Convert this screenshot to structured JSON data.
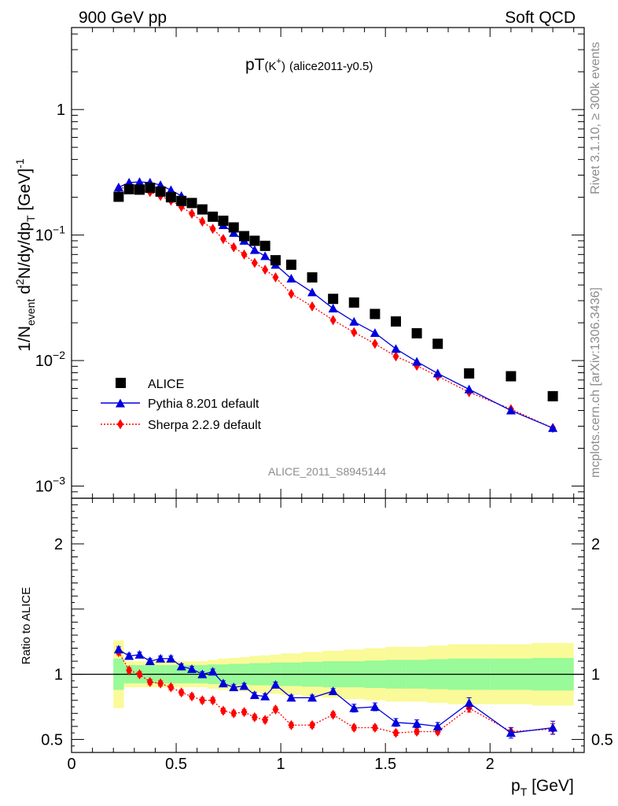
{
  "header": {
    "left": "900 GeV pp",
    "right": "Soft QCD"
  },
  "side_labels": {
    "rivet": "Rivet 3.1.10, ≥ 300k events",
    "mcplots": "mcplots.cern.ch [arXiv:1306.3436]"
  },
  "colors": {
    "data": "#000000",
    "pythia": "#0000dd",
    "sherpa": "#ff0000",
    "band_inner": "#98fa98",
    "band_outer": "#fafa98"
  },
  "chart_data": [
    {
      "type": "scatter",
      "title_main": "pT",
      "title_particle": "(K",
      "title_charge": "+",
      "title_close": ")",
      "title_tag": "(alice2011-y0.5)",
      "ylabel_parts": [
        "1/N",
        "event",
        " d",
        "2",
        "N/dy/dp",
        "T",
        " [GeV]",
        "-1"
      ],
      "yscale": "log",
      "ylim": [
        0.0008,
        4.5
      ],
      "xlim": [
        0,
        2.45
      ],
      "y_tick_labels": [
        {
          "value": 0.001,
          "base": "10",
          "exp": "−3"
        },
        {
          "value": 0.01,
          "base": "10",
          "exp": "−2"
        },
        {
          "value": 0.1,
          "base": "10",
          "exp": "−1"
        },
        {
          "value": 1,
          "base": "1",
          "exp": ""
        }
      ],
      "watermark": "ALICE_2011_S8945144",
      "legend": {
        "placement": "bottom-left",
        "entries": [
          "ALICE",
          "Pythia 8.201 default",
          "Sherpa 2.2.9 default"
        ]
      },
      "x": [
        0.225,
        0.275,
        0.325,
        0.375,
        0.425,
        0.475,
        0.525,
        0.575,
        0.625,
        0.675,
        0.725,
        0.775,
        0.825,
        0.875,
        0.925,
        0.975,
        1.05,
        1.15,
        1.25,
        1.35,
        1.45,
        1.55,
        1.65,
        1.75,
        1.9,
        2.1,
        2.3
      ],
      "series": [
        {
          "name": "ALICE",
          "marker": "square",
          "values": [
            0.202,
            0.232,
            0.23,
            0.238,
            0.222,
            0.2,
            0.187,
            0.18,
            0.16,
            0.14,
            0.13,
            0.115,
            0.098,
            0.09,
            0.082,
            0.063,
            0.058,
            0.046,
            0.031,
            0.029,
            0.0235,
            0.0205,
            0.0165,
            0.0136,
            0.0079,
            0.0075,
            0.0052
          ]
        },
        {
          "name": "Pythia 8.201 default",
          "marker": "triangle",
          "line": "solid",
          "values": [
            0.24,
            0.262,
            0.265,
            0.262,
            0.25,
            0.228,
            0.205,
            0.18,
            0.158,
            0.138,
            0.12,
            0.104,
            0.09,
            0.076,
            0.068,
            0.058,
            0.045,
            0.035,
            0.026,
            0.0204,
            0.0166,
            0.0124,
            0.0098,
            0.0079,
            0.0059,
            0.004,
            0.0029
          ]
        },
        {
          "name": "Sherpa 2.2.9 default",
          "marker": "diamond",
          "line": "dotted",
          "values": [
            0.236,
            0.24,
            0.23,
            0.22,
            0.205,
            0.188,
            0.168,
            0.148,
            0.128,
            0.112,
            0.093,
            0.08,
            0.07,
            0.06,
            0.053,
            0.046,
            0.034,
            0.027,
            0.021,
            0.0168,
            0.0136,
            0.0108,
            0.0091,
            0.0075,
            0.0056,
            0.0041,
            0.0029
          ]
        }
      ]
    },
    {
      "type": "scatter",
      "ylabel": "Ratio to ALICE",
      "ylim": [
        0.4,
        2.35
      ],
      "xlim": [
        0,
        2.45
      ],
      "xlabel_main": "p",
      "xlabel_sub": "T",
      "xlabel_unit": " [GeV]",
      "x_ticks": [
        {
          "value": 0,
          "label": "0"
        },
        {
          "value": 0.5,
          "label": "0.5"
        },
        {
          "value": 1,
          "label": "1"
        },
        {
          "value": 1.5,
          "label": "1.5"
        },
        {
          "value": 2,
          "label": "2"
        }
      ],
      "y_ticks": [
        {
          "value": 0.5,
          "label": "0.5"
        },
        {
          "value": 1,
          "label": "1"
        },
        {
          "value": 2,
          "label": "2"
        }
      ],
      "reference_line": 1,
      "bin_edges": [
        0.2,
        0.25,
        0.3,
        0.35,
        0.4,
        0.45,
        0.5,
        0.55,
        0.6,
        0.65,
        0.7,
        0.75,
        0.8,
        0.85,
        0.9,
        0.95,
        1.0,
        1.1,
        1.2,
        1.3,
        1.4,
        1.5,
        1.6,
        1.7,
        1.8,
        2.0,
        2.2,
        2.4
      ],
      "band_inner_halfwidth": [
        0.12,
        0.07,
        0.07,
        0.07,
        0.07,
        0.07,
        0.07,
        0.07,
        0.07,
        0.075,
        0.075,
        0.08,
        0.08,
        0.085,
        0.085,
        0.09,
        0.09,
        0.095,
        0.1,
        0.1,
        0.105,
        0.11,
        0.11,
        0.115,
        0.12,
        0.12,
        0.125
      ],
      "band_outer_halfwidth": [
        0.26,
        0.1,
        0.1,
        0.1,
        0.1,
        0.1,
        0.1,
        0.1,
        0.1,
        0.11,
        0.12,
        0.125,
        0.13,
        0.14,
        0.145,
        0.15,
        0.16,
        0.17,
        0.18,
        0.19,
        0.2,
        0.21,
        0.21,
        0.22,
        0.23,
        0.23,
        0.24
      ],
      "series": [
        {
          "name": "Pythia 8.201 default",
          "marker": "triangle",
          "line": "solid",
          "values": [
            1.19,
            1.14,
            1.15,
            1.1,
            1.12,
            1.12,
            1.06,
            1.04,
            1.0,
            1.02,
            0.93,
            0.9,
            0.91,
            0.84,
            0.83,
            0.92,
            0.82,
            0.82,
            0.87,
            0.74,
            0.75,
            0.63,
            0.62,
            0.6,
            0.78,
            0.55,
            0.59
          ],
          "errors": [
            0.02,
            0.02,
            0.02,
            0.02,
            0.02,
            0.02,
            0.02,
            0.02,
            0.02,
            0.02,
            0.02,
            0.02,
            0.02,
            0.02,
            0.02,
            0.02,
            0.02,
            0.02,
            0.02,
            0.03,
            0.03,
            0.03,
            0.03,
            0.03,
            0.04,
            0.04,
            0.05
          ]
        },
        {
          "name": "Sherpa 2.2.9 default",
          "marker": "diamond",
          "line": "dotted",
          "values": [
            1.17,
            1.03,
            1.0,
            0.94,
            0.93,
            0.9,
            0.86,
            0.83,
            0.8,
            0.8,
            0.72,
            0.7,
            0.71,
            0.67,
            0.65,
            0.73,
            0.61,
            0.61,
            0.69,
            0.59,
            0.59,
            0.55,
            0.56,
            0.56,
            0.74,
            0.56,
            0.58
          ],
          "errors": [
            0.02,
            0.02,
            0.02,
            0.02,
            0.02,
            0.02,
            0.02,
            0.02,
            0.02,
            0.02,
            0.02,
            0.02,
            0.02,
            0.02,
            0.02,
            0.02,
            0.02,
            0.02,
            0.02,
            0.02,
            0.02,
            0.02,
            0.02,
            0.02,
            0.03,
            0.03,
            0.04
          ]
        }
      ]
    }
  ]
}
